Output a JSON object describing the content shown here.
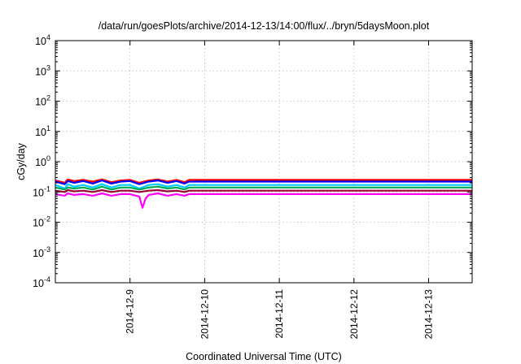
{
  "chart_data": {
    "type": "line",
    "title": "/data/run/goesPlots/archive/2014-12-13/14:00/flux/../bryn/5daysMoon.plot",
    "xlabel": "Coordinated Universal Time (UTC)",
    "ylabel": "cGy/day",
    "yscale": "log",
    "ylim": [
      0.0001,
      10000
    ],
    "xlim": [
      "2014-12-08 00:00",
      "2014-12-13 14:00"
    ],
    "grid": true,
    "yticks": [
      {
        "base": "10",
        "exp": "-4",
        "value": 0.0001
      },
      {
        "base": "10",
        "exp": "-3",
        "value": 0.001
      },
      {
        "base": "10",
        "exp": "-2",
        "value": 0.01
      },
      {
        "base": "10",
        "exp": "-1",
        "value": 0.1
      },
      {
        "base": "10",
        "exp": "0",
        "value": 1
      },
      {
        "base": "10",
        "exp": "1",
        "value": 10
      },
      {
        "base": "10",
        "exp": "2",
        "value": 100
      },
      {
        "base": "10",
        "exp": "3",
        "value": 1000
      },
      {
        "base": "10",
        "exp": "4",
        "value": 10000
      }
    ],
    "xticks": [
      {
        "label": "2014-12-9",
        "value": "2014-12-09 00:00"
      },
      {
        "label": "2014-12-10",
        "value": "2014-12-10 00:00"
      },
      {
        "label": "2014-12-11",
        "value": "2014-12-11 00:00"
      },
      {
        "label": "2014-12-12",
        "value": "2014-12-12 00:00"
      },
      {
        "label": "2014-12-13",
        "value": "2014-12-13 00:00"
      }
    ],
    "series": [
      {
        "color": "#ff0000",
        "x": [
          "2014-12-08 00:00",
          "2014-12-08 03:00",
          "2014-12-08 04:00",
          "2014-12-08 06:00",
          "2014-12-08 09:00",
          "2014-12-08 12:00",
          "2014-12-08 15:00",
          "2014-12-08 18:00",
          "2014-12-08 21:00",
          "2014-12-09 00:00",
          "2014-12-09 03:00",
          "2014-12-09 06:00",
          "2014-12-09 09:00",
          "2014-12-09 12:00",
          "2014-12-09 15:00",
          "2014-12-09 17:30",
          "2014-12-09 19:00",
          "2014-12-13 14:00"
        ],
        "values": [
          0.24,
          0.2,
          0.26,
          0.23,
          0.25,
          0.22,
          0.26,
          0.21,
          0.24,
          0.25,
          0.2,
          0.24,
          0.26,
          0.22,
          0.25,
          0.21,
          0.25,
          0.25
        ]
      },
      {
        "color": "#0000ff",
        "x": [
          "2014-12-08 00:00",
          "2014-12-08 03:00",
          "2014-12-08 04:00",
          "2014-12-08 06:00",
          "2014-12-08 09:00",
          "2014-12-08 12:00",
          "2014-12-08 15:00",
          "2014-12-08 18:00",
          "2014-12-08 21:00",
          "2014-12-09 00:00",
          "2014-12-09 03:00",
          "2014-12-09 06:00",
          "2014-12-09 09:00",
          "2014-12-09 12:00",
          "2014-12-09 15:00",
          "2014-12-09 17:30",
          "2014-12-09 19:00",
          "2014-12-13 14:00"
        ],
        "values": [
          0.22,
          0.18,
          0.23,
          0.2,
          0.23,
          0.19,
          0.24,
          0.19,
          0.22,
          0.23,
          0.18,
          0.22,
          0.24,
          0.2,
          0.23,
          0.19,
          0.22,
          0.22
        ]
      },
      {
        "color": "#00ccff",
        "x": [
          "2014-12-08 00:00",
          "2014-12-08 03:00",
          "2014-12-08 04:00",
          "2014-12-08 06:00",
          "2014-12-08 09:00",
          "2014-12-08 12:00",
          "2014-12-08 15:00",
          "2014-12-08 18:00",
          "2014-12-08 21:00",
          "2014-12-09 00:00",
          "2014-12-09 03:00",
          "2014-12-09 06:00",
          "2014-12-09 09:00",
          "2014-12-09 12:00",
          "2014-12-09 15:00",
          "2014-12-09 17:30",
          "2014-12-09 19:00",
          "2014-12-13 14:00"
        ],
        "values": [
          0.17,
          0.13,
          0.18,
          0.15,
          0.17,
          0.14,
          0.18,
          0.14,
          0.17,
          0.17,
          0.13,
          0.17,
          0.18,
          0.15,
          0.17,
          0.14,
          0.17,
          0.17
        ]
      },
      {
        "color": "#00aa55",
        "x": [
          "2014-12-08 00:00",
          "2014-12-08 03:00",
          "2014-12-08 04:00",
          "2014-12-08 06:00",
          "2014-12-08 09:00",
          "2014-12-08 12:00",
          "2014-12-08 15:00",
          "2014-12-08 18:00",
          "2014-12-08 21:00",
          "2014-12-09 00:00",
          "2014-12-09 03:00",
          "2014-12-09 06:00",
          "2014-12-09 09:00",
          "2014-12-09 12:00",
          "2014-12-09 15:00",
          "2014-12-09 17:30",
          "2014-12-09 19:00",
          "2014-12-13 14:00"
        ],
        "values": [
          0.14,
          0.12,
          0.14,
          0.13,
          0.14,
          0.12,
          0.15,
          0.12,
          0.14,
          0.14,
          0.12,
          0.14,
          0.15,
          0.13,
          0.14,
          0.12,
          0.14,
          0.14
        ]
      },
      {
        "color": "#990033",
        "x": [
          "2014-12-08 00:00",
          "2014-12-08 03:00",
          "2014-12-08 04:00",
          "2014-12-08 06:00",
          "2014-12-08 09:00",
          "2014-12-08 12:00",
          "2014-12-08 15:00",
          "2014-12-08 18:00",
          "2014-12-08 21:00",
          "2014-12-09 00:00",
          "2014-12-09 03:00",
          "2014-12-09 06:00",
          "2014-12-09 09:00",
          "2014-12-09 12:00",
          "2014-12-09 15:00",
          "2014-12-09 17:30",
          "2014-12-09 19:00",
          "2014-12-13 14:00"
        ],
        "values": [
          0.11,
          0.1,
          0.115,
          0.105,
          0.11,
          0.1,
          0.115,
          0.1,
          0.11,
          0.11,
          0.1,
          0.11,
          0.115,
          0.105,
          0.11,
          0.1,
          0.11,
          0.11
        ]
      },
      {
        "color": "#ff00ff",
        "x": [
          "2014-12-08 00:00",
          "2014-12-08 03:00",
          "2014-12-08 04:00",
          "2014-12-08 06:00",
          "2014-12-08 09:00",
          "2014-12-08 12:00",
          "2014-12-08 15:00",
          "2014-12-08 18:00",
          "2014-12-08 21:00",
          "2014-12-09 00:00",
          "2014-12-09 03:00",
          "2014-12-09 04:00",
          "2014-12-09 05:00",
          "2014-12-09 06:00",
          "2014-12-09 09:00",
          "2014-12-09 12:00",
          "2014-12-09 15:00",
          "2014-12-09 17:30",
          "2014-12-09 19:00",
          "2014-12-13 14:00"
        ],
        "values": [
          0.085,
          0.075,
          0.09,
          0.08,
          0.085,
          0.075,
          0.09,
          0.075,
          0.085,
          0.085,
          0.07,
          0.03,
          0.06,
          0.08,
          0.09,
          0.075,
          0.085,
          0.075,
          0.085,
          0.085
        ]
      }
    ]
  }
}
